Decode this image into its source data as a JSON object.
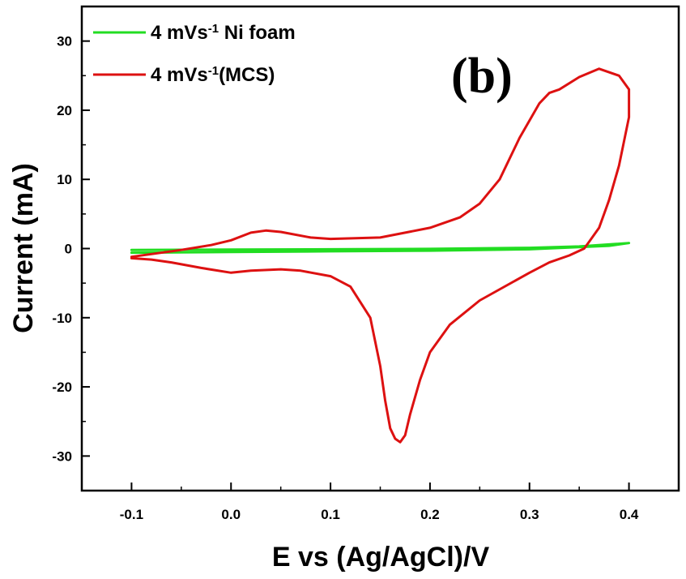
{
  "chart_data": {
    "type": "line",
    "title": "",
    "panel_label": "(b)",
    "xlabel": "E vs (Ag/AgCl)/V",
    "ylabel": "Current (mA)",
    "xlim": [
      -0.15,
      0.45
    ],
    "ylim": [
      -35,
      35
    ],
    "xticks": [
      -0.1,
      0.0,
      0.1,
      0.2,
      0.3,
      0.4
    ],
    "xtick_labels": [
      "-0.1",
      "0.0",
      "0.1",
      "0.2",
      "0.3",
      "0.4"
    ],
    "yticks": [
      -30,
      -20,
      -10,
      0,
      10,
      20,
      30
    ],
    "ytick_labels": [
      "-30",
      "-20",
      "-10",
      "0",
      "10",
      "20",
      "30"
    ],
    "grid": false,
    "legend_position": "top-left",
    "series": [
      {
        "name_base": "4 mVs",
        "name_sup": "-1",
        "name_rest": " Ni foam",
        "color": "#22dd22",
        "x": [
          -0.1,
          0.0,
          0.1,
          0.2,
          0.3,
          0.35,
          0.4,
          0.38,
          0.3,
          0.2,
          0.1,
          0.0,
          -0.1
        ],
        "y": [
          -0.2,
          -0.15,
          -0.1,
          -0.05,
          0.1,
          0.3,
          0.8,
          0.4,
          -0.1,
          -0.3,
          -0.4,
          -0.5,
          -0.6
        ]
      },
      {
        "name_base": "4 mVs",
        "name_sup": "-1",
        "name_rest": "(MCS)",
        "color": "#dd1111",
        "x": [
          -0.1,
          -0.08,
          -0.05,
          -0.02,
          0.0,
          0.02,
          0.035,
          0.05,
          0.08,
          0.1,
          0.15,
          0.2,
          0.23,
          0.25,
          0.27,
          0.29,
          0.31,
          0.32,
          0.33,
          0.35,
          0.37,
          0.39,
          0.4,
          0.4,
          0.39,
          0.38,
          0.37,
          0.36,
          0.355,
          0.34,
          0.32,
          0.3,
          0.25,
          0.22,
          0.2,
          0.19,
          0.18,
          0.175,
          0.17,
          0.165,
          0.16,
          0.155,
          0.15,
          0.14,
          0.12,
          0.1,
          0.07,
          0.05,
          0.02,
          0.0,
          -0.03,
          -0.06,
          -0.08,
          -0.1
        ],
        "y": [
          -1.2,
          -0.8,
          -0.2,
          0.5,
          1.2,
          2.3,
          2.6,
          2.4,
          1.6,
          1.4,
          1.6,
          3.0,
          4.5,
          6.5,
          10.0,
          16.0,
          21.0,
          22.5,
          23.0,
          24.8,
          26.0,
          25.0,
          23.0,
          19.0,
          12.0,
          7.0,
          3.0,
          1.0,
          0.0,
          -1.0,
          -2.0,
          -3.5,
          -7.5,
          -11.0,
          -15.0,
          -19.0,
          -24.0,
          -27.0,
          -28.0,
          -27.5,
          -26.0,
          -22.0,
          -17.0,
          -10.0,
          -5.5,
          -4.0,
          -3.2,
          -3.0,
          -3.2,
          -3.5,
          -2.8,
          -2.0,
          -1.6,
          -1.4
        ]
      }
    ]
  }
}
